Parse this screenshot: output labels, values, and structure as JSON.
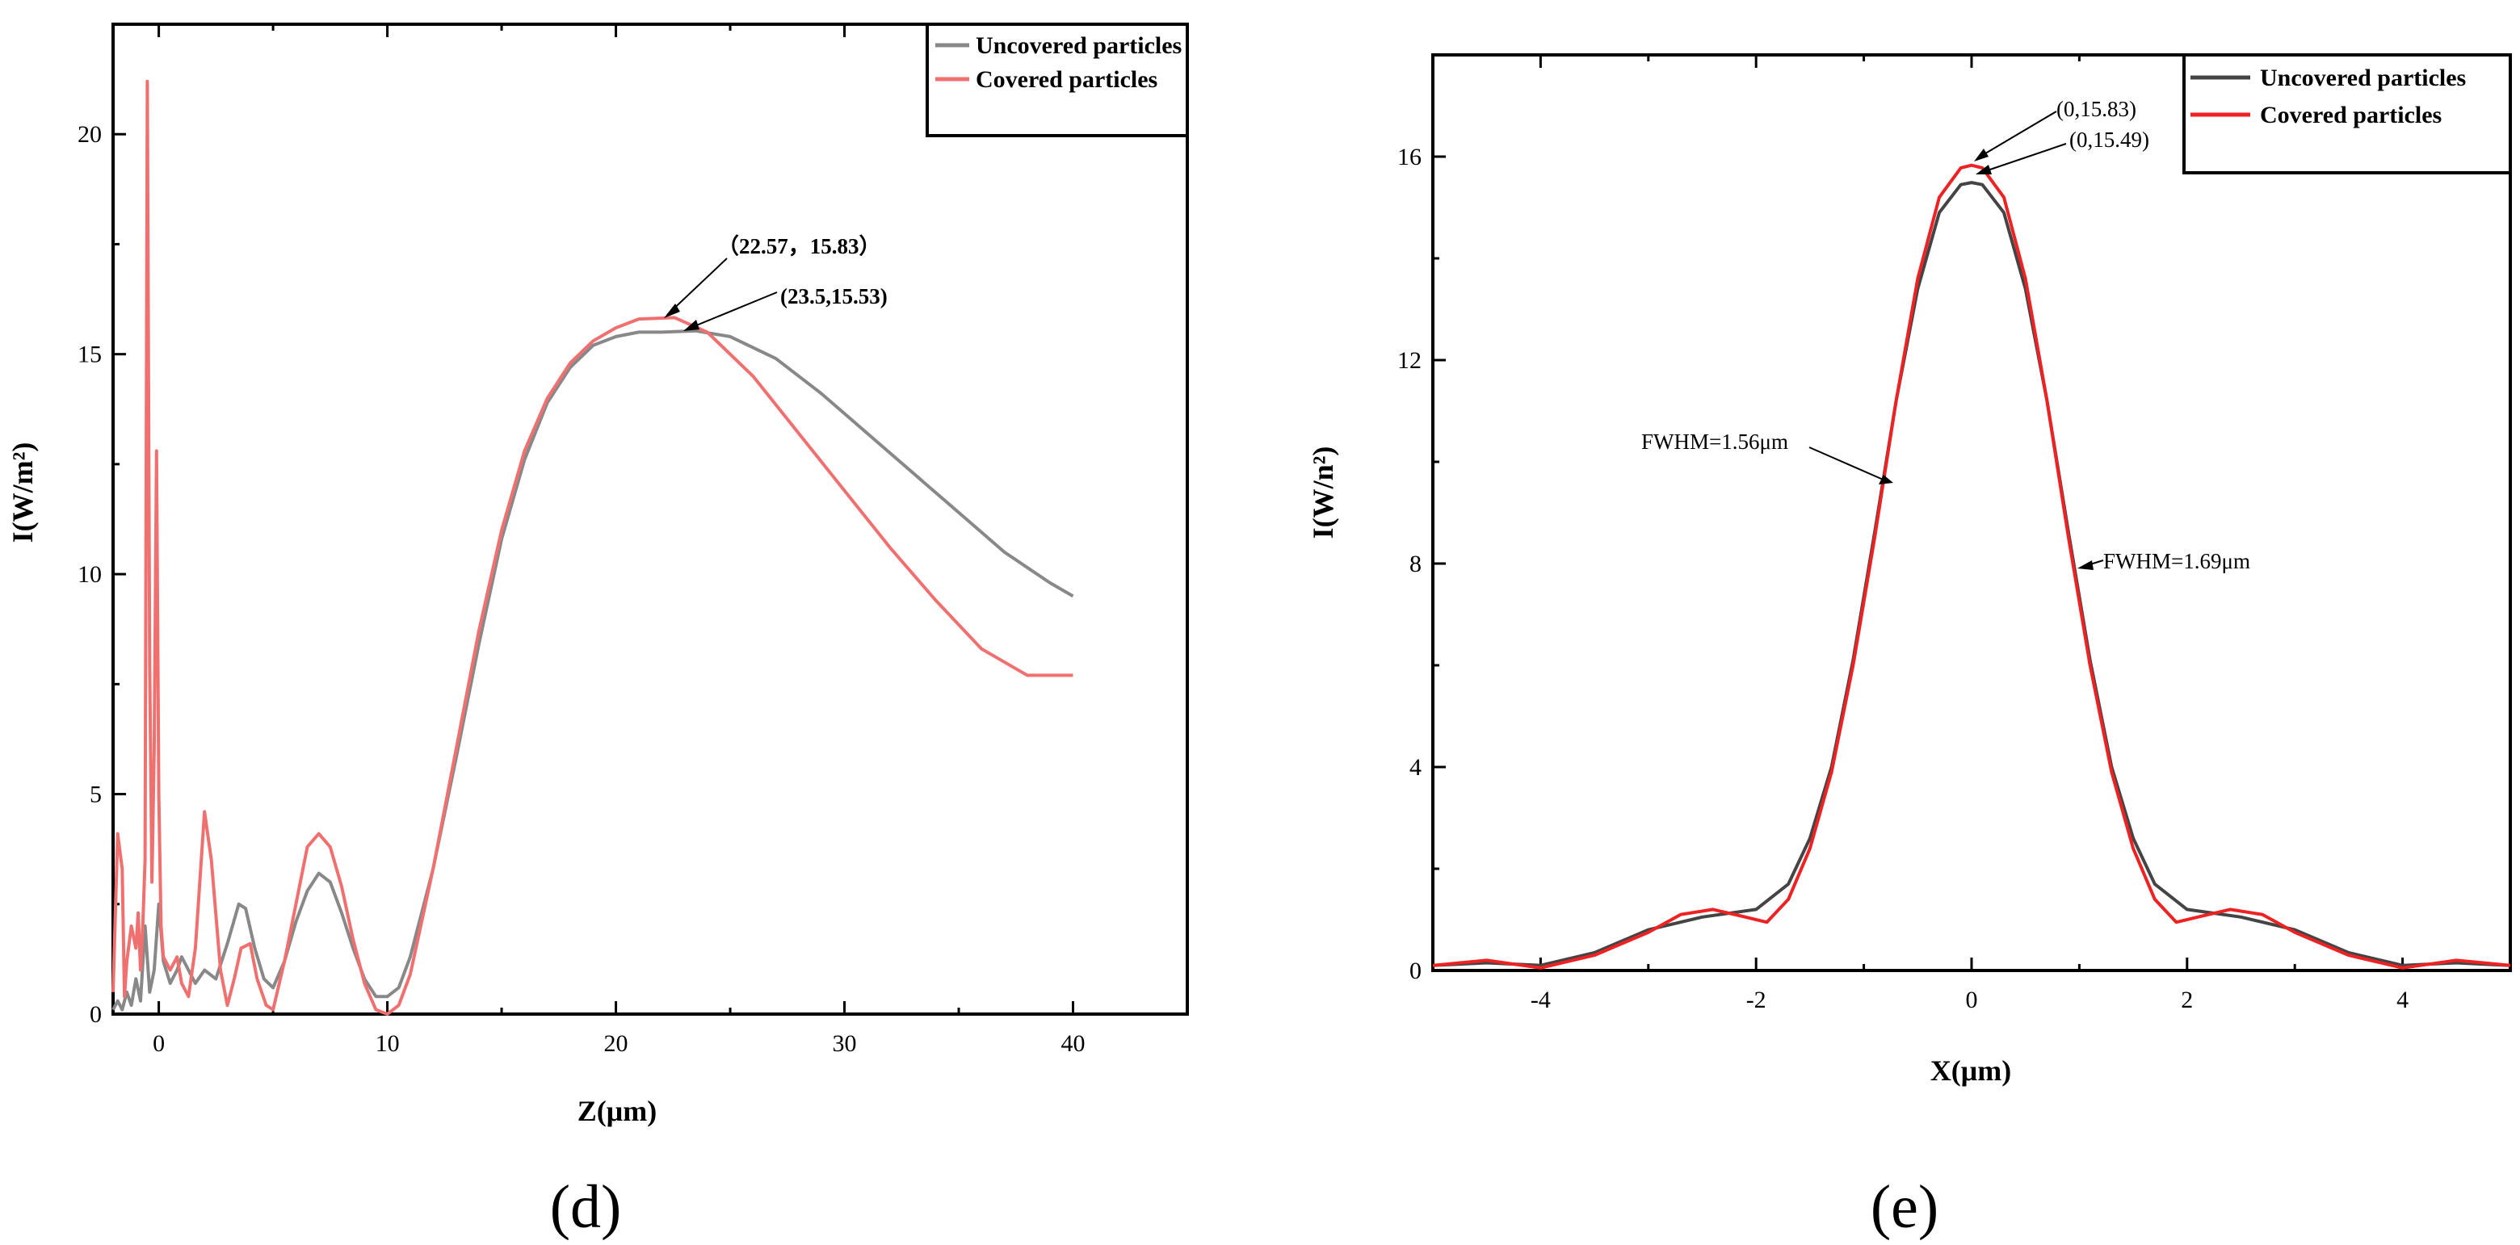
{
  "chart_data": [
    {
      "type": "line",
      "panel_label": "(d)",
      "xlabel": "Z(μm)",
      "ylabel": "I(W/m²)",
      "xlim": [
        -2,
        45
      ],
      "ylim": [
        0,
        22.5
      ],
      "xticks": [
        0,
        10,
        20,
        30,
        40
      ],
      "yticks": [
        0,
        5,
        10,
        15,
        20
      ],
      "legend_position": "top-right",
      "colors": {
        "uncovered": "#888888",
        "covered": "#f07070"
      },
      "series": [
        {
          "name": "Uncovered particles",
          "x": [
            -2,
            -1.8,
            -1.6,
            -1.4,
            -1.2,
            -1.0,
            -0.8,
            -0.6,
            -0.4,
            -0.2,
            0,
            0.2,
            0.5,
            0.8,
            1.0,
            1.3,
            1.6,
            2.0,
            2.5,
            3.0,
            3.5,
            3.8,
            4.2,
            4.6,
            5.0,
            5.5,
            6.0,
            6.5,
            7.0,
            7.5,
            8.0,
            8.5,
            9.0,
            9.5,
            10.0,
            10.5,
            11.0,
            12.0,
            13.0,
            14.0,
            15.0,
            16.0,
            17.0,
            18.0,
            19.0,
            20.0,
            21.0,
            22.0,
            23.5,
            25.0,
            27.0,
            29.0,
            31.0,
            33.0,
            35.0,
            37.0,
            39.0,
            40.0
          ],
          "values": [
            0.1,
            0.3,
            0.1,
            0.5,
            0.2,
            0.8,
            0.3,
            2.0,
            0.5,
            1.0,
            2.5,
            1.2,
            0.7,
            1.0,
            1.3,
            1.0,
            0.7,
            1.0,
            0.8,
            1.6,
            2.5,
            2.4,
            1.5,
            0.8,
            0.6,
            1.2,
            2.1,
            2.8,
            3.2,
            3.0,
            2.3,
            1.5,
            0.8,
            0.4,
            0.4,
            0.6,
            1.3,
            3.3,
            5.8,
            8.4,
            10.8,
            12.6,
            13.9,
            14.7,
            15.2,
            15.4,
            15.5,
            15.5,
            15.53,
            15.4,
            14.9,
            14.1,
            13.2,
            12.3,
            11.4,
            10.5,
            9.8,
            9.5
          ]
        },
        {
          "name": "Covered particles",
          "x": [
            -2,
            -1.8,
            -1.6,
            -1.5,
            -1.4,
            -1.2,
            -1.0,
            -0.9,
            -0.8,
            -0.7,
            -0.6,
            -0.5,
            -0.4,
            -0.3,
            -0.2,
            -0.1,
            0,
            0.1,
            0.2,
            0.5,
            0.8,
            1.0,
            1.3,
            1.6,
            2.0,
            2.3,
            2.7,
            3.0,
            3.3,
            3.6,
            4.0,
            4.3,
            4.7,
            5.0,
            5.5,
            6.0,
            6.5,
            7.0,
            7.5,
            8.0,
            8.5,
            9.0,
            9.5,
            10.0,
            10.5,
            11.0,
            12.0,
            13.0,
            14.0,
            15.0,
            16.0,
            17.0,
            18.0,
            19.0,
            20.0,
            21.0,
            22.57,
            24.0,
            26.0,
            28.0,
            30.0,
            32.0,
            34.0,
            36.0,
            38.0,
            40.0
          ],
          "values": [
            0.5,
            4.1,
            3.3,
            0.4,
            1.2,
            2.0,
            1.5,
            2.3,
            1.0,
            2.0,
            3.5,
            21.2,
            8.0,
            3.0,
            6.0,
            12.8,
            5.0,
            2.0,
            1.3,
            1.0,
            1.3,
            0.7,
            0.4,
            1.5,
            4.6,
            3.5,
            1.0,
            0.2,
            0.8,
            1.5,
            1.6,
            0.8,
            0.2,
            0.1,
            1.2,
            2.5,
            3.8,
            4.1,
            3.8,
            2.9,
            1.7,
            0.7,
            0.1,
            0.0,
            0.2,
            0.9,
            3.3,
            6.0,
            8.7,
            11.0,
            12.8,
            14.0,
            14.8,
            15.3,
            15.6,
            15.8,
            15.83,
            15.5,
            14.5,
            13.2,
            11.9,
            10.6,
            9.4,
            8.3,
            7.7,
            7.7
          ]
        }
      ],
      "annotations": [
        {
          "text": "（22.57，15.83）",
          "point": [
            22.57,
            15.83
          ]
        },
        {
          "text": "(23.5,15.53)",
          "point": [
            23.5,
            15.53
          ]
        }
      ]
    },
    {
      "type": "line",
      "panel_label": "(e)",
      "xlabel": "X(μm)",
      "ylabel": "I(W/n²)",
      "xlim": [
        -5,
        5
      ],
      "ylim": [
        0,
        18
      ],
      "xticks": [
        -4,
        -2,
        0,
        2,
        4
      ],
      "yticks": [
        0,
        4,
        8,
        12,
        16
      ],
      "legend_position": "top-right",
      "colors": {
        "uncovered": "#444444",
        "covered": "#ee2222"
      },
      "series": [
        {
          "name": "Uncovered particles",
          "x": [
            -5.0,
            -4.5,
            -4.0,
            -3.5,
            -3.0,
            -2.5,
            -2.0,
            -1.7,
            -1.5,
            -1.3,
            -1.1,
            -0.9,
            -0.7,
            -0.5,
            -0.3,
            -0.1,
            0,
            0.1,
            0.3,
            0.5,
            0.7,
            0.9,
            1.1,
            1.3,
            1.5,
            1.7,
            2.0,
            2.5,
            3.0,
            3.5,
            4.0,
            4.5,
            5.0
          ],
          "values": [
            0.1,
            0.15,
            0.1,
            0.35,
            0.8,
            1.05,
            1.2,
            1.7,
            2.6,
            4.0,
            6.1,
            8.6,
            11.2,
            13.4,
            14.9,
            15.45,
            15.49,
            15.45,
            14.9,
            13.4,
            11.2,
            8.6,
            6.1,
            4.0,
            2.6,
            1.7,
            1.2,
            1.05,
            0.8,
            0.35,
            0.1,
            0.15,
            0.1
          ]
        },
        {
          "name": "Covered particles",
          "x": [
            -5.0,
            -4.5,
            -4.0,
            -3.5,
            -3.0,
            -2.7,
            -2.4,
            -2.1,
            -1.9,
            -1.7,
            -1.5,
            -1.3,
            -1.1,
            -0.9,
            -0.7,
            -0.5,
            -0.3,
            -0.1,
            0,
            0.1,
            0.3,
            0.5,
            0.7,
            0.9,
            1.1,
            1.3,
            1.5,
            1.7,
            1.9,
            2.1,
            2.4,
            2.7,
            3.0,
            3.5,
            4.0,
            4.5,
            5.0
          ],
          "values": [
            0.1,
            0.2,
            0.05,
            0.3,
            0.75,
            1.1,
            1.2,
            1.05,
            0.95,
            1.4,
            2.4,
            3.9,
            6.0,
            8.5,
            11.2,
            13.6,
            15.2,
            15.78,
            15.83,
            15.78,
            15.2,
            13.6,
            11.2,
            8.5,
            6.0,
            3.9,
            2.4,
            1.4,
            0.95,
            1.05,
            1.2,
            1.1,
            0.75,
            0.3,
            0.05,
            0.2,
            0.1
          ]
        }
      ],
      "annotations": [
        {
          "text": "(0,15.83)",
          "point": [
            0,
            15.83
          ]
        },
        {
          "text": "(0,15.49)",
          "point": [
            0,
            15.49
          ]
        },
        {
          "text": "FWHM=1.56μm",
          "point": [
            -0.78,
            9.5
          ]
        },
        {
          "text": "FWHM=1.69μm",
          "point": [
            1.0,
            7.8
          ]
        }
      ]
    }
  ]
}
